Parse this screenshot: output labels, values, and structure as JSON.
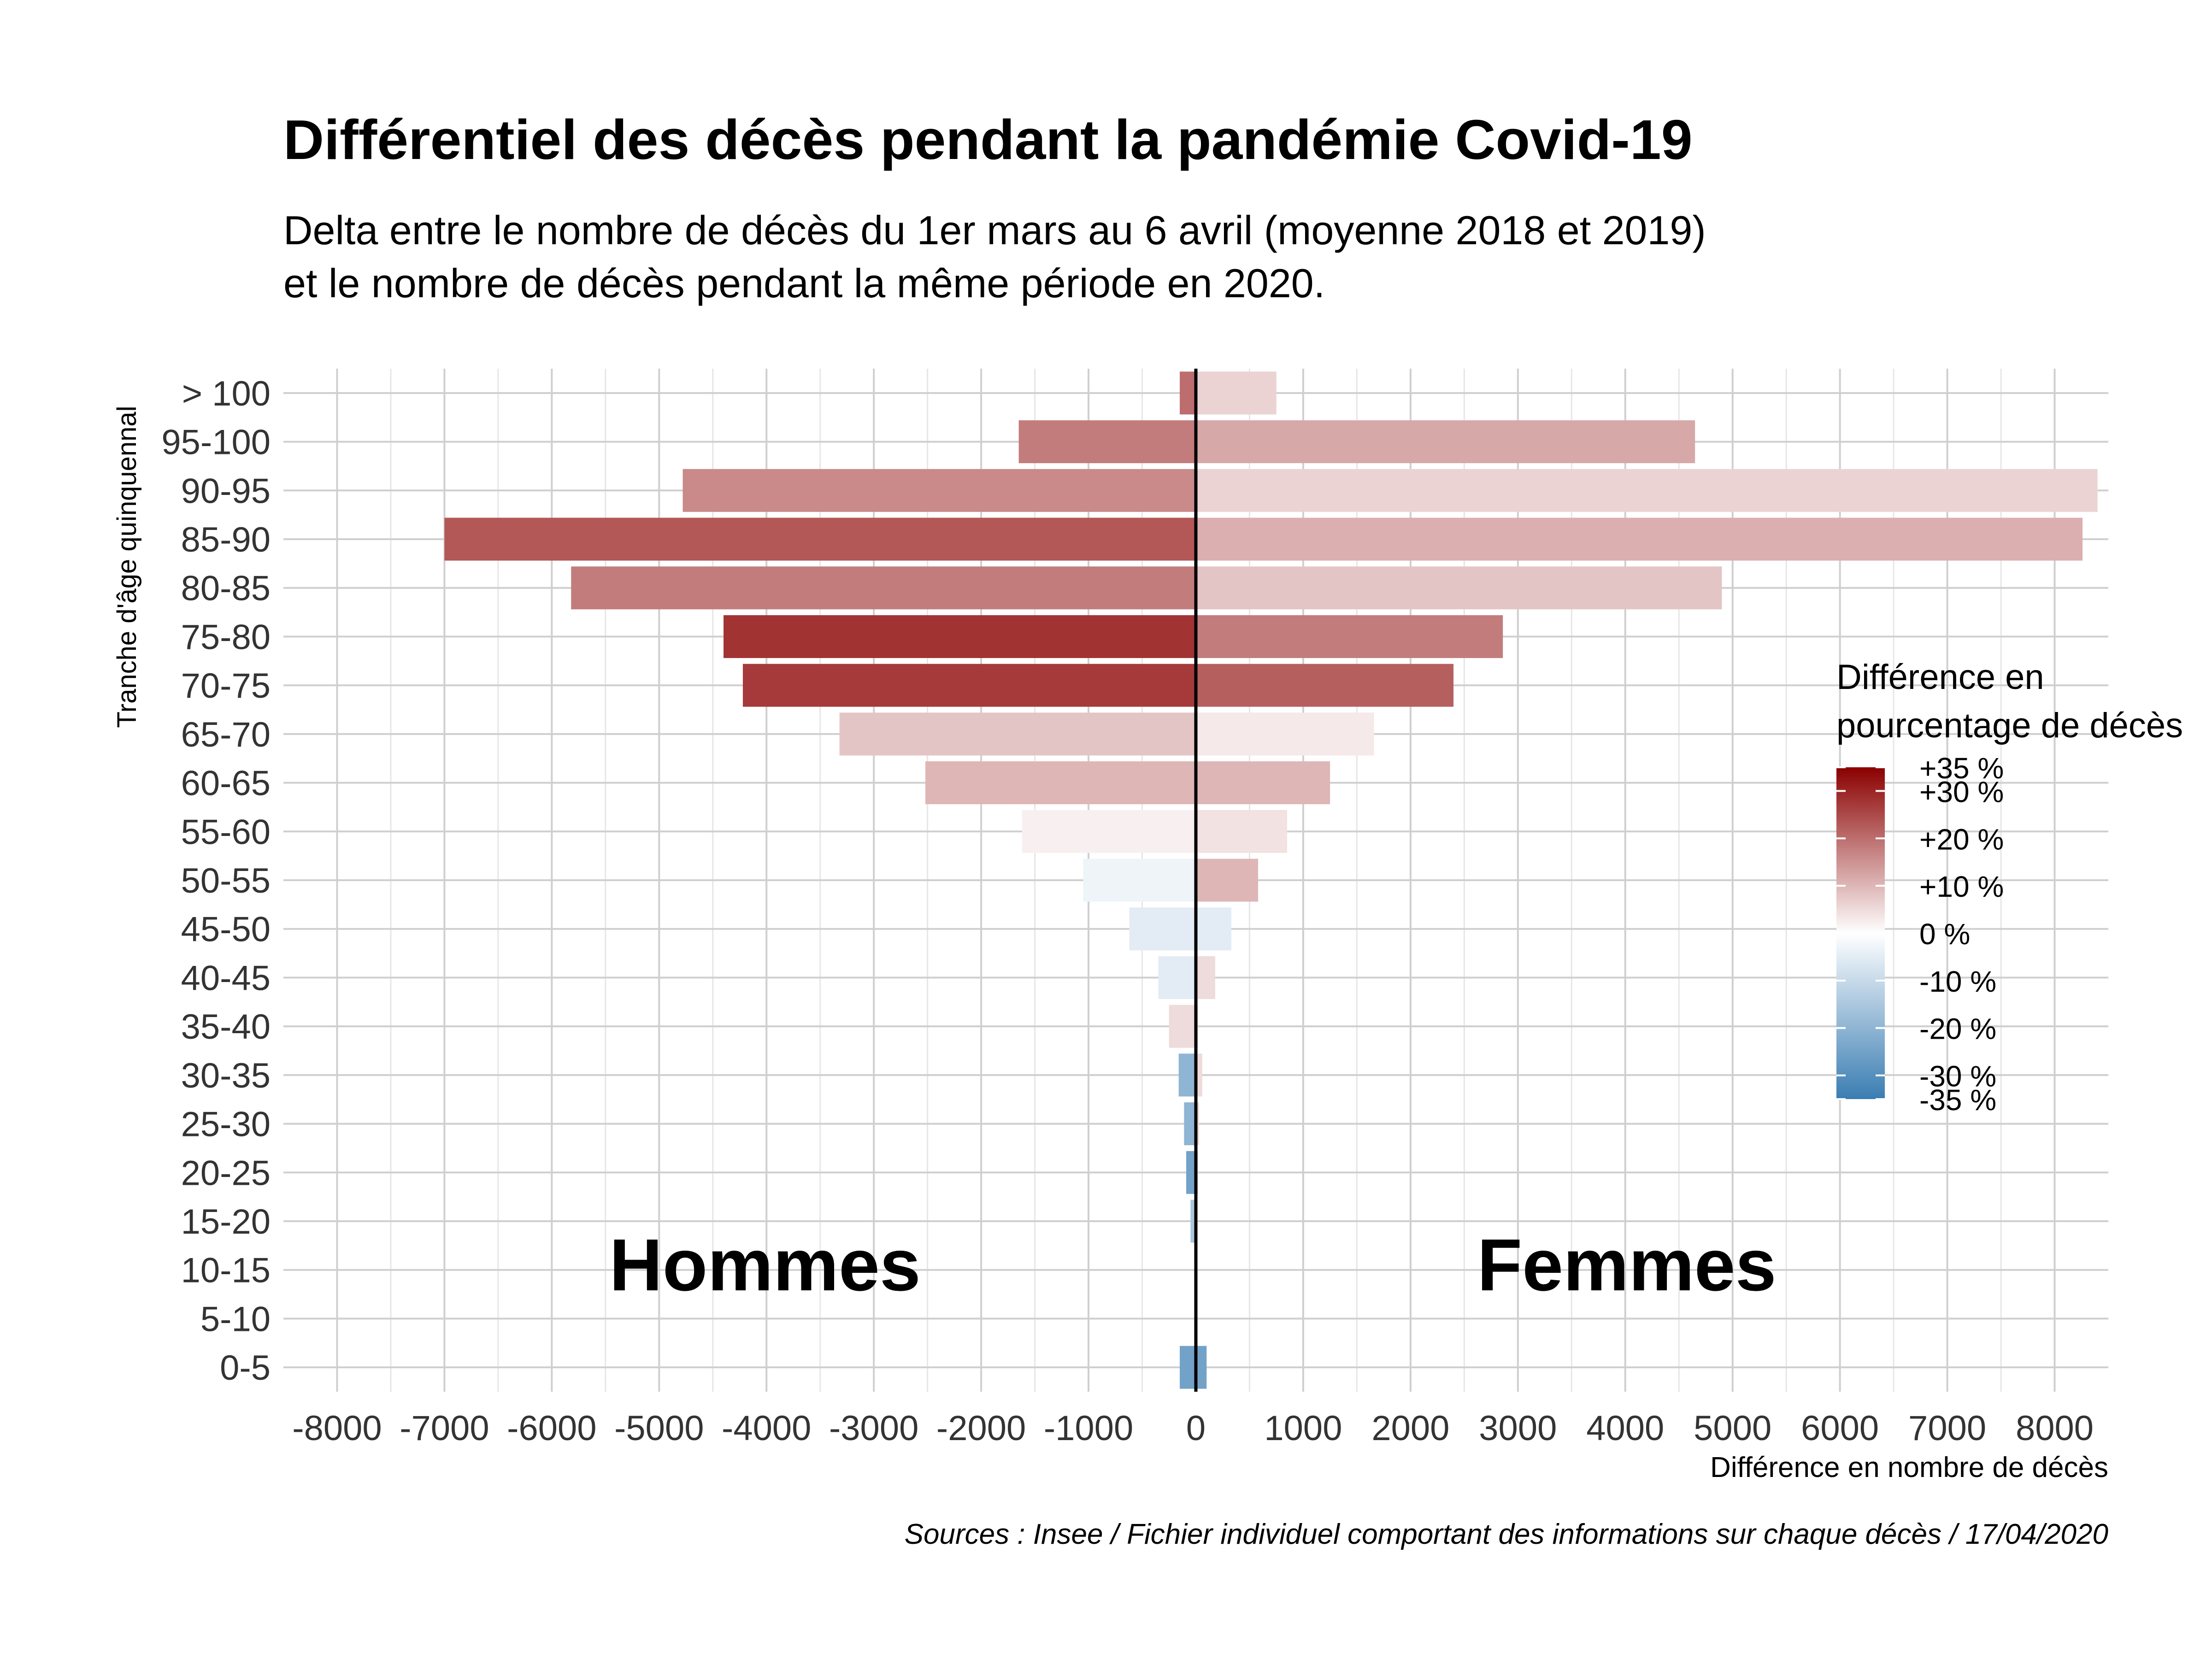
{
  "chart_data": {
    "type": "bar",
    "orientation": "horizontal",
    "title": "Différentiel des décès pendant la pandémie Covid-19",
    "subtitle": [
      "Delta entre le nombre de décès du 1er mars au 6 avril (moyenne 2018 et 2019)",
      "et le nombre de décès pendant la même période en 2020."
    ],
    "xlabel": "Différence en nombre de décès",
    "ylabel": "Tranche d'âge quinquennal",
    "caption": "Sources : Insee / Fichier individuel comportant des informations sur chaque décès / 17/04/2020",
    "xlim": [
      -8500,
      8500
    ],
    "xticks": [
      -8000,
      -7000,
      -6000,
      -5000,
      -4000,
      -3000,
      -2000,
      -1000,
      0,
      1000,
      2000,
      3000,
      4000,
      5000,
      6000,
      7000,
      8000
    ],
    "xtick_labels": [
      "-8000",
      "-7000",
      "-6000",
      "-5000",
      "-4000",
      "-3000",
      "-2000",
      "-1000",
      "0",
      "1000",
      "2000",
      "3000",
      "4000",
      "5000",
      "6000",
      "7000",
      "8000"
    ],
    "grid": true,
    "categories": [
      "0-5",
      "5-10",
      "10-15",
      "15-20",
      "20-25",
      "25-30",
      "30-35",
      "35-40",
      "40-45",
      "45-50",
      "50-55",
      "55-60",
      "60-65",
      "65-70",
      "70-75",
      "75-80",
      "80-85",
      "85-90",
      "90-95",
      "95-100",
      "> 100"
    ],
    "series": [
      {
        "name": "Hommes",
        "values": [
          -150,
          -10,
          -15,
          -50,
          -90,
          -110,
          -160,
          -250,
          -350,
          -620,
          -1050,
          -1620,
          -2520,
          -3320,
          -4220,
          -4400,
          -5820,
          -7000,
          -4780,
          -1650,
          -150
        ],
        "pct": [
          -25,
          -5,
          -5,
          -15,
          -25,
          -20,
          -20,
          5,
          -5,
          -5,
          -3,
          2,
          10,
          8,
          27,
          28,
          18,
          23,
          16,
          18,
          20
        ]
      },
      {
        "name": "Femmes",
        "values": [
          100,
          10,
          10,
          10,
          20,
          30,
          60,
          20,
          180,
          330,
          580,
          850,
          1250,
          1660,
          2400,
          2860,
          4900,
          8260,
          8400,
          4650,
          750
        ],
        "pct": [
          -25,
          -5,
          -5,
          -5,
          5,
          5,
          5,
          5,
          5,
          -5,
          10,
          4,
          10,
          3,
          22,
          18,
          8,
          11,
          6,
          12,
          6
        ]
      }
    ],
    "overlay_labels": {
      "left": "Hommes",
      "right": "Femmes"
    },
    "legend": {
      "title": [
        "Différence en",
        "pourcentage de décès"
      ],
      "position": "right",
      "range": [
        -35,
        35
      ],
      "ticks": [
        35,
        30,
        20,
        10,
        0,
        -10,
        -20,
        -30,
        -35
      ],
      "tick_labels": [
        "+35 %",
        "+30 %",
        "+20 %",
        "+10 %",
        "0 %",
        "-10 %",
        "-20 %",
        "-30 %",
        "-35 %"
      ],
      "colors": {
        "low": "#3a7db2",
        "mid": "#ffffff",
        "high": "#8b0000"
      }
    }
  }
}
